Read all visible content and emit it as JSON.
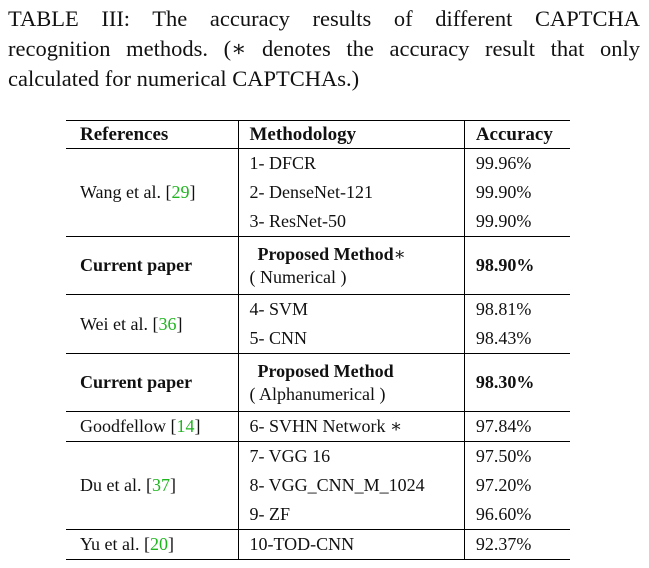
{
  "caption": {
    "line1": "TABLE III: The accuracy results of different CAPTCHA",
    "line2": "recognition methods. (∗ denotes the accuracy result that only",
    "line3": "calculated for numerical CAPTCHAs.)"
  },
  "headers": {
    "references": "References",
    "methodology": "Methodology",
    "accuracy": "Accuracy"
  },
  "rows": {
    "wang": {
      "ref_name": "Wang et al. [",
      "ref_num": "29",
      "ref_close": "]",
      "m1": "1- DFCR",
      "a1": "99.96%",
      "m2": "2- DenseNet-121",
      "a2": "99.90%",
      "m3": "3- ResNet-50",
      "a3": "99.90%"
    },
    "current1": {
      "ref": "Current paper",
      "method": "Proposed Method",
      "star": "∗",
      "sub": "( Numerical )",
      "acc": "98.90%"
    },
    "wei": {
      "ref_name": "Wei et al. [",
      "ref_num": "36",
      "ref_close": "]",
      "m1": "4- SVM",
      "a1": "98.81%",
      "m2": "5- CNN",
      "a2": "98.43%"
    },
    "current2": {
      "ref": "Current paper",
      "method": "Proposed Method",
      "sub": "( Alphanumerical )",
      "acc": "98.30%"
    },
    "goodfellow": {
      "ref_name": "Goodfellow [",
      "ref_num": "14",
      "ref_close": "]",
      "m1": "6- SVHN Network ∗",
      "a1": "97.84%"
    },
    "du": {
      "ref_name": "Du et al. [",
      "ref_num": "37",
      "ref_close": "]",
      "m1": "7- VGG 16",
      "a1": "97.50%",
      "m2": "8- VGG_CNN_M_1024",
      "a2": "97.20%",
      "m3": "9- ZF",
      "a3": "96.60%"
    },
    "yu": {
      "ref_name": "Yu et al. [",
      "ref_num": "20",
      "ref_close": "]",
      "m1": "10-TOD-CNN",
      "a1": "92.37%"
    }
  },
  "colors": {
    "citation_link": "#1fb51f",
    "text": "#111111",
    "rule": "#000000"
  }
}
